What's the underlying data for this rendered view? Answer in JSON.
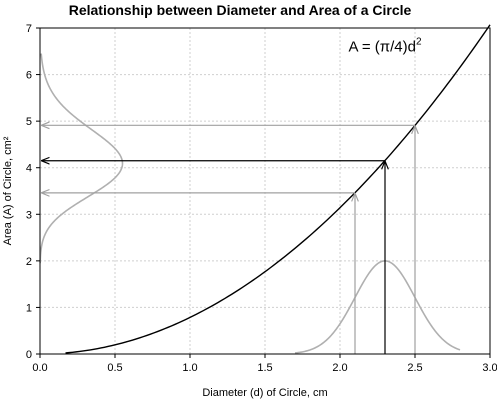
{
  "chart_data": {
    "type": "line",
    "title": "Relationship between Diameter and Area of a Circle",
    "xlabel": "Diameter (d) of Circle, cm",
    "ylabel": "Area (A) of Circle, cm²",
    "xlim": [
      0,
      3.0
    ],
    "ylim": [
      0,
      7
    ],
    "xticks": [
      "0.0",
      "0.5",
      "1.0",
      "1.5",
      "2.0",
      "2.5",
      "3.0"
    ],
    "yticks": [
      "0",
      "1",
      "2",
      "3",
      "4",
      "5",
      "6",
      "7"
    ],
    "grid": true,
    "annotation": {
      "prefix": "A = ",
      "fraction": "(π/4)",
      "suffix": "d",
      "exponent": "2",
      "at": [
        2.3,
        6.5
      ]
    },
    "series": [
      {
        "kind": "curve",
        "formula": "A = (pi/4) * d^2",
        "x_start": 0.17,
        "x_end": 3.0,
        "color": "#000000"
      }
    ],
    "diameter_distribution": {
      "mean": 2.3,
      "sd": 0.2,
      "peak_area": 2.0,
      "x_range": [
        1.7,
        2.8
      ],
      "color": "#b0b0b0"
    },
    "area_distribution": {
      "center": 4.15,
      "baseline_x": 0.0,
      "peak_x": 0.55,
      "y_range": [
        1.95,
        6.45
      ],
      "color": "#b0b0b0"
    },
    "mapping_arrows": [
      {
        "d": 2.1,
        "A": 3.46,
        "color": "#a0a0a0"
      },
      {
        "d": 2.3,
        "A": 4.15,
        "color": "#000000"
      },
      {
        "d": 2.5,
        "A": 4.91,
        "color": "#a0a0a0"
      }
    ]
  }
}
